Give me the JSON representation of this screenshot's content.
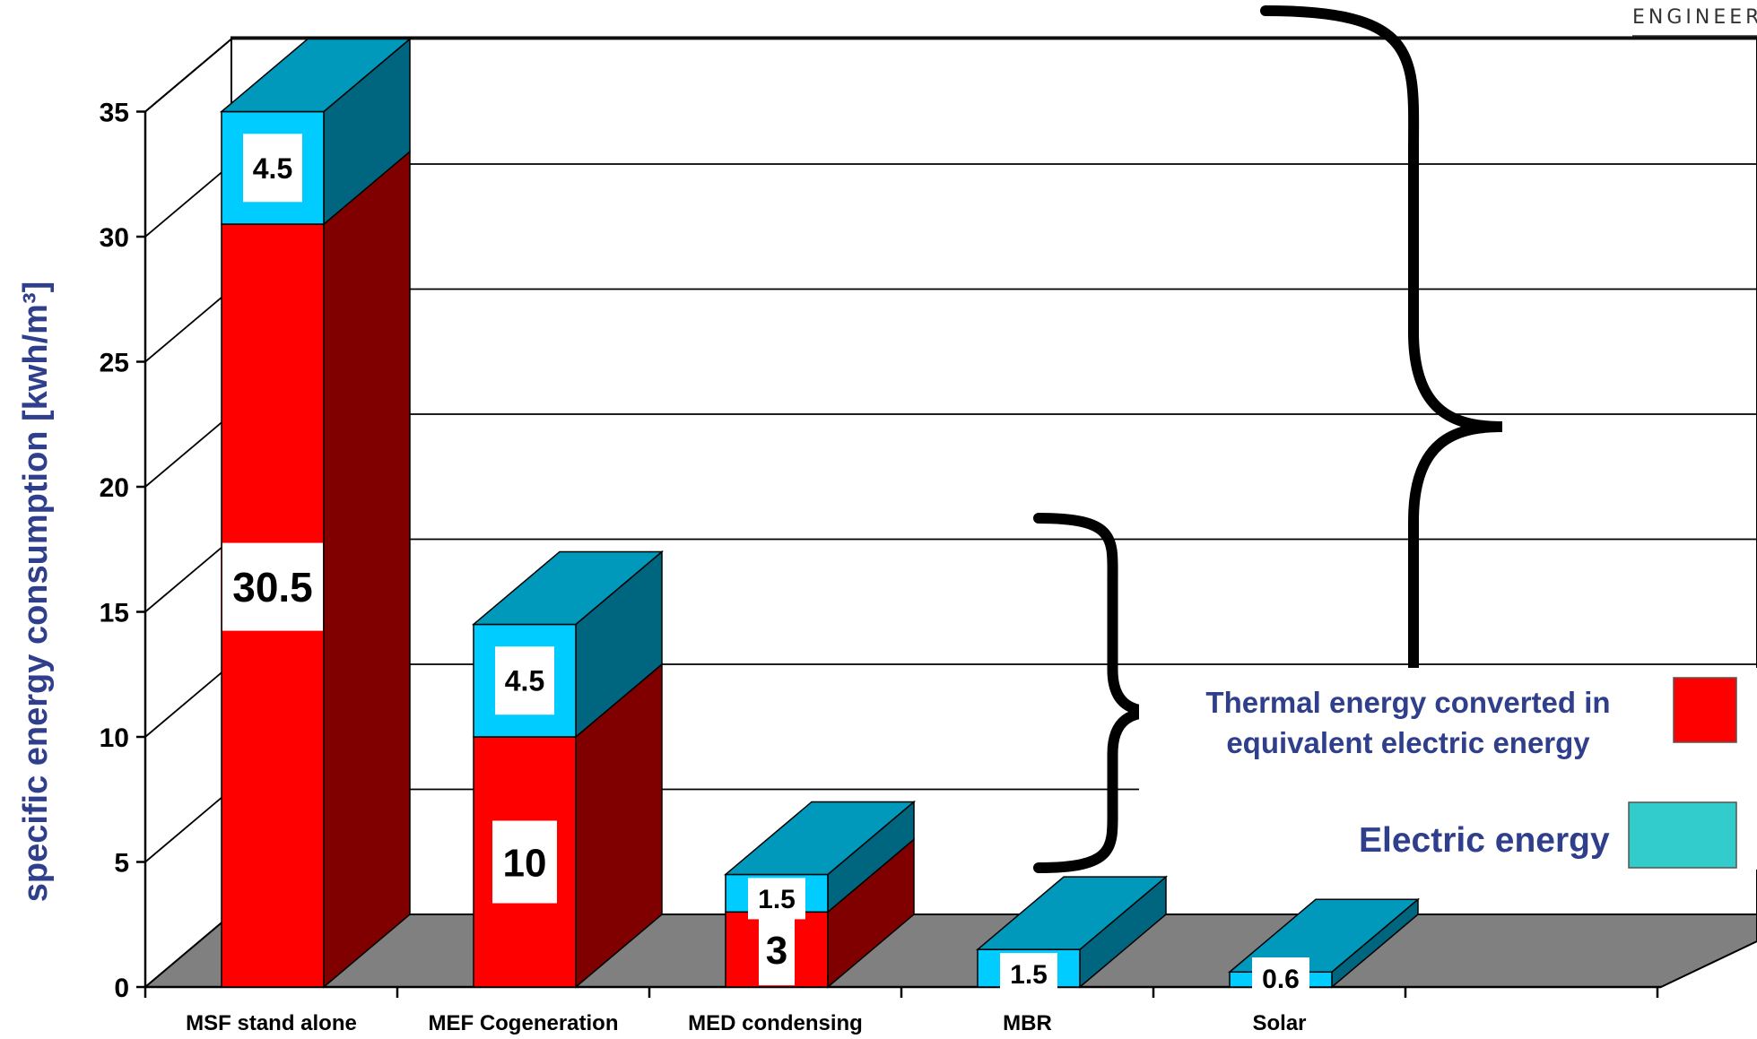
{
  "chart_data": {
    "type": "bar",
    "stacked": true,
    "three_d": true,
    "categories": [
      "MSF stand alone",
      "MEF Cogeneration",
      "MED condensing",
      "MBR",
      "Solar"
    ],
    "series": [
      {
        "name": "Thermal energy converted in equivalent electric energy",
        "values": [
          30.5,
          10,
          3,
          0,
          0
        ],
        "color": "#ff0000",
        "labels": [
          "30.5",
          "10",
          "3",
          "",
          ""
        ]
      },
      {
        "name": "Electric energy",
        "values": [
          4.5,
          4.5,
          1.5,
          1.5,
          0.6
        ],
        "color": "#00ccff",
        "labels": [
          "4.5",
          "4.5",
          "1.5",
          "1.5",
          "0.6"
        ]
      }
    ],
    "ylabel": "specific energy consumption [kwh/m³]",
    "ylim": [
      0,
      35
    ],
    "yticks": [
      "0",
      "5",
      "10",
      "15",
      "20",
      "25",
      "30",
      "35"
    ],
    "grid": true,
    "legend_position": "right",
    "legend": [
      {
        "label_lines": [
          "Thermal energy converted in",
          "equivalent electric energy"
        ],
        "swatch": "#ff0000"
      },
      {
        "label_lines": [
          "Electric energy"
        ],
        "swatch": "#33cccc"
      }
    ],
    "colors": {
      "thermal_front": "#ff0000",
      "thermal_side": "#800000",
      "electric_front": "#00ccff",
      "electric_side": "#006680",
      "top": "#0099bb",
      "floor": "#808080",
      "text_blue": "#2f3f8c"
    }
  },
  "corner_text": "ENGINEER"
}
